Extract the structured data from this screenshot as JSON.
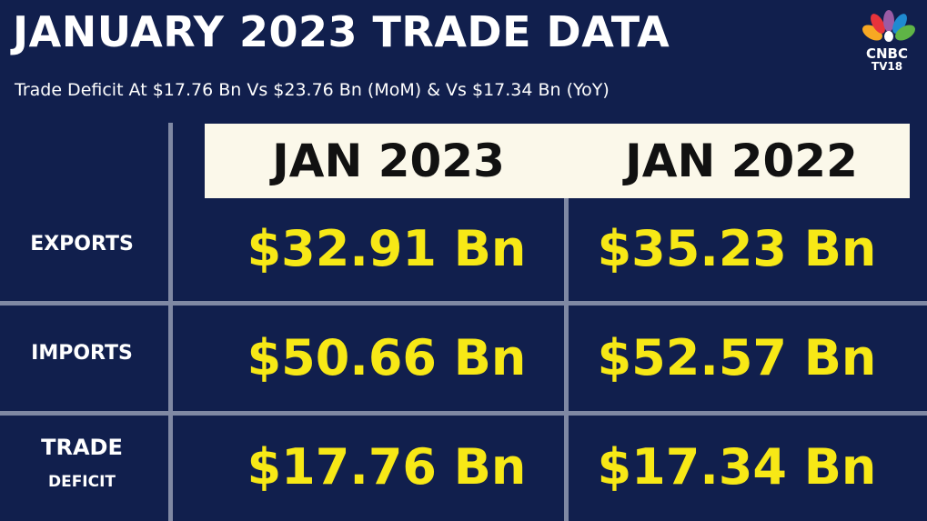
{
  "header": {
    "title": "JANUARY 2023 TRADE DATA",
    "subtitle": "Trade Deficit At $17.76 Bn Vs $23.76 Bn (MoM) & Vs $17.34 Bn (YoY)"
  },
  "logo": {
    "line1": "CNBC",
    "line2": "TV18"
  },
  "table": {
    "columns": [
      "JAN 2023",
      "JAN 2022"
    ],
    "rows": [
      {
        "label": [
          "EXPORTS"
        ],
        "cells": [
          "$32.91 Bn",
          "$35.23 Bn"
        ]
      },
      {
        "label": [
          "IMPORTS"
        ],
        "cells": [
          "$50.66 Bn",
          "$52.57 Bn"
        ]
      },
      {
        "label": [
          "TRADE",
          "DEFICIT"
        ],
        "cells": [
          "$17.76 Bn",
          "$17.34 Bn"
        ]
      }
    ]
  }
}
